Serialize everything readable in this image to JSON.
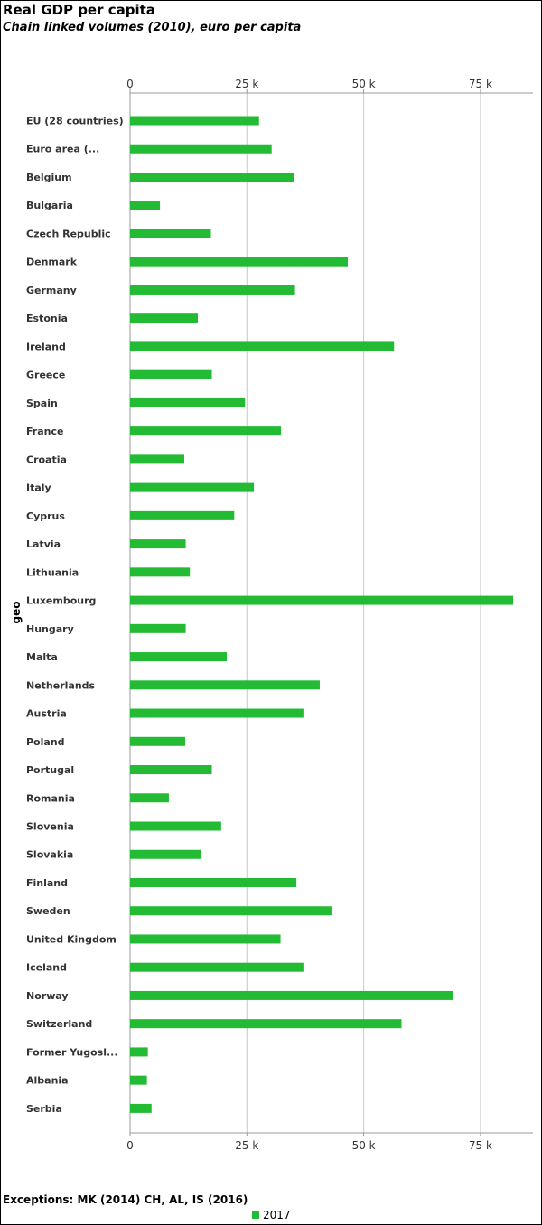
{
  "chart_data": {
    "type": "bar",
    "orientation": "horizontal",
    "title": "Real GDP per capita",
    "subtitle": "Chain linked volumes (2010), euro per capita",
    "xlabel": "",
    "ylabel": "geo",
    "xlim": [
      0,
      85000
    ],
    "xticks": [
      0,
      25000,
      50000,
      75000
    ],
    "xtick_labels": [
      "0",
      "25 k",
      "50 k",
      "75 k"
    ],
    "grid": true,
    "legend_position": "bottom-center",
    "categories": [
      "EU (28 countries)",
      "Euro area (...",
      "Belgium",
      "Bulgaria",
      "Czech Republic",
      "Denmark",
      "Germany",
      "Estonia",
      "Ireland",
      "Greece",
      "Spain",
      "France",
      "Croatia",
      "Italy",
      "Cyprus",
      "Latvia",
      "Lithuania",
      "Luxembourg",
      "Hungary",
      "Malta",
      "Netherlands",
      "Austria",
      "Poland",
      "Portugal",
      "Romania",
      "Slovenia",
      "Slovakia",
      "Finland",
      "Sweden",
      "United Kingdom",
      "Iceland",
      "Norway",
      "Switzerland",
      "Former Yugosl...",
      "Albania",
      "Serbia"
    ],
    "series": [
      {
        "name": "2017",
        "color": "#22bb33",
        "values": [
          27600,
          30300,
          35000,
          6400,
          17300,
          46600,
          35300,
          14500,
          56500,
          17500,
          24600,
          32300,
          11600,
          26500,
          22300,
          11900,
          12800,
          82000,
          11900,
          20700,
          40600,
          37100,
          11800,
          17500,
          8300,
          19500,
          15200,
          35600,
          43100,
          32200,
          37100,
          69100,
          58100,
          3800,
          3600,
          4600
        ]
      }
    ]
  },
  "footnote": "Exceptions: MK (2014) CH, AL, IS (2016)",
  "legend": {
    "label": "2017",
    "color": "#22bb33"
  }
}
